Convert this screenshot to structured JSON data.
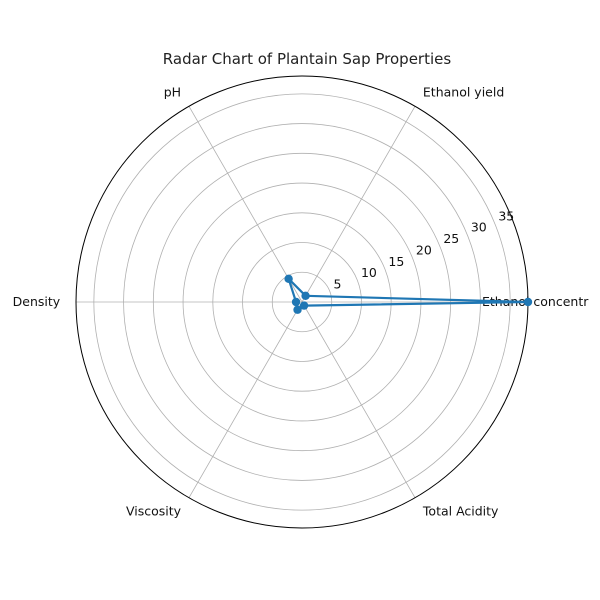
{
  "chart_data": {
    "type": "radar",
    "title": "Radar Chart of Plantain Sap Properties",
    "categories": [
      "Ethanol concentration",
      "Ethanol yield",
      "pH",
      "Density",
      "Viscosity",
      "Total Acidity"
    ],
    "category_labels_shown": [
      "Ethanol concentr",
      "Ethanol yield",
      "pH",
      "Density",
      "Viscosity",
      "Total Acidity"
    ],
    "series": [
      {
        "values": [
          38.0,
          1.2,
          4.5,
          1.0,
          1.5,
          0.7
        ],
        "color": "#1f77b4"
      }
    ],
    "r_ticks": [
      5,
      10,
      15,
      20,
      25,
      30,
      35
    ],
    "r_range": [
      0,
      38
    ],
    "grid": true
  }
}
